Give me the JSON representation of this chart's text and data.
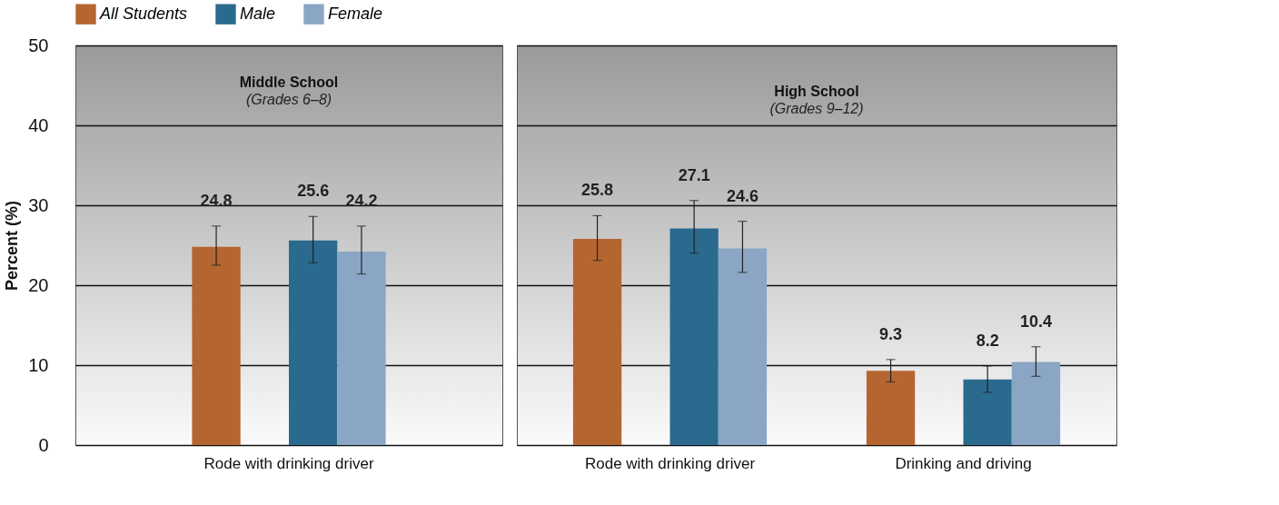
{
  "chart_data": [
    {
      "type": "bar",
      "title": "Middle School",
      "subtitle": "(Grades 6–8)",
      "ylabel": "Percent (%)",
      "categories": [
        "Rode with drinking driver"
      ],
      "series": [
        {
          "name": "All Students",
          "color": "#b5652f",
          "values": [
            24.8
          ],
          "errors": [
            [
              22.5,
              27.4
            ]
          ]
        },
        {
          "name": "Male",
          "color": "#2a6a8e",
          "values": [
            25.6
          ],
          "errors": [
            [
              22.8,
              28.6
            ]
          ]
        },
        {
          "name": "Female",
          "color": "#8aa6c4",
          "values": [
            24.2
          ],
          "errors": [
            [
              21.4,
              27.4
            ]
          ]
        }
      ],
      "ylim": [
        0,
        50
      ],
      "yticks": [
        0,
        10,
        20,
        30,
        40,
        50
      ],
      "grid": "y",
      "legend": "top left",
      "data_labels": true
    },
    {
      "type": "bar",
      "title": "High School",
      "subtitle": "(Grades 9–12)",
      "categories": [
        "Rode with drinking driver",
        "Drinking and driving"
      ],
      "series": [
        {
          "name": "All Students",
          "color": "#b5652f",
          "values": [
            25.8,
            9.3
          ],
          "errors": [
            [
              23.1,
              28.7
            ],
            [
              7.9,
              10.7
            ]
          ]
        },
        {
          "name": "Male",
          "color": "#2a6a8e",
          "values": [
            27.1,
            8.2
          ],
          "errors": [
            [
              24.0,
              30.6
            ],
            [
              6.6,
              9.9
            ]
          ]
        },
        {
          "name": "Female",
          "color": "#8aa6c4",
          "values": [
            24.6,
            10.4
          ],
          "errors": [
            [
              21.6,
              28.0
            ],
            [
              8.6,
              12.3
            ]
          ]
        }
      ],
      "ylim": [
        0,
        50
      ],
      "yticks": [
        0,
        10,
        20,
        30,
        40,
        50
      ],
      "grid": "y",
      "tick_labels": "x",
      "data_labels": true
    }
  ]
}
